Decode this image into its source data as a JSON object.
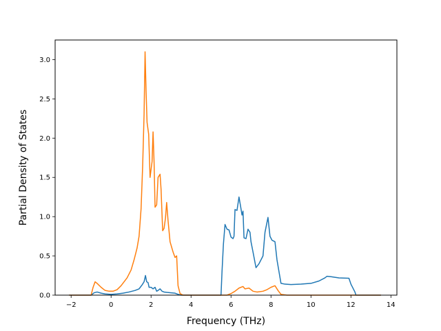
{
  "chart_data": {
    "type": "line",
    "title": "",
    "xlabel": "Frequency (THz)",
    "ylabel": "Partial Density of States",
    "xlim": [
      -2.8,
      14.3
    ],
    "ylim": [
      0.0,
      3.25
    ],
    "xticks": [
      -2,
      0,
      2,
      4,
      6,
      8,
      10,
      12,
      14
    ],
    "yticks": [
      0.0,
      0.5,
      1.0,
      1.5,
      2.0,
      2.5,
      3.0
    ],
    "xtick_labels": [
      "−2",
      "0",
      "2",
      "4",
      "6",
      "8",
      "10",
      "12",
      "14"
    ],
    "ytick_labels": [
      "0.0",
      "0.5",
      "1.0",
      "1.5",
      "2.0",
      "2.5",
      "3.0"
    ],
    "grid": false,
    "legend": "none",
    "series": [
      {
        "color": "#1f77b4",
        "points": [
          [
            -2.1,
            0.0
          ],
          [
            -1.0,
            0.0
          ],
          [
            -0.85,
            0.03
          ],
          [
            -0.7,
            0.04
          ],
          [
            -0.5,
            0.025
          ],
          [
            -0.3,
            0.015
          ],
          [
            0.0,
            0.01
          ],
          [
            0.3,
            0.015
          ],
          [
            0.6,
            0.025
          ],
          [
            0.9,
            0.04
          ],
          [
            1.2,
            0.06
          ],
          [
            1.4,
            0.08
          ],
          [
            1.55,
            0.13
          ],
          [
            1.65,
            0.17
          ],
          [
            1.72,
            0.25
          ],
          [
            1.78,
            0.17
          ],
          [
            1.85,
            0.16
          ],
          [
            1.9,
            0.1
          ],
          [
            2.0,
            0.1
          ],
          [
            2.1,
            0.08
          ],
          [
            2.2,
            0.1
          ],
          [
            2.28,
            0.05
          ],
          [
            2.35,
            0.06
          ],
          [
            2.45,
            0.08
          ],
          [
            2.55,
            0.05
          ],
          [
            2.65,
            0.04
          ],
          [
            2.8,
            0.035
          ],
          [
            3.0,
            0.03
          ],
          [
            3.2,
            0.025
          ],
          [
            3.35,
            0.01
          ],
          [
            3.5,
            0.0
          ],
          [
            5.5,
            0.0
          ],
          [
            5.55,
            0.3
          ],
          [
            5.62,
            0.65
          ],
          [
            5.7,
            0.9
          ],
          [
            5.8,
            0.84
          ],
          [
            5.9,
            0.83
          ],
          [
            6.0,
            0.74
          ],
          [
            6.1,
            0.72
          ],
          [
            6.15,
            0.75
          ],
          [
            6.2,
            1.09
          ],
          [
            6.3,
            1.08
          ],
          [
            6.4,
            1.25
          ],
          [
            6.5,
            1.1
          ],
          [
            6.55,
            1.02
          ],
          [
            6.6,
            1.07
          ],
          [
            6.65,
            0.73
          ],
          [
            6.75,
            0.72
          ],
          [
            6.85,
            0.84
          ],
          [
            6.95,
            0.8
          ],
          [
            7.0,
            0.68
          ],
          [
            7.1,
            0.55
          ],
          [
            7.25,
            0.35
          ],
          [
            7.4,
            0.4
          ],
          [
            7.6,
            0.5
          ],
          [
            7.7,
            0.8
          ],
          [
            7.85,
            0.99
          ],
          [
            7.95,
            0.75
          ],
          [
            8.05,
            0.7
          ],
          [
            8.2,
            0.68
          ],
          [
            8.3,
            0.45
          ],
          [
            8.4,
            0.3
          ],
          [
            8.5,
            0.15
          ],
          [
            8.7,
            0.14
          ],
          [
            9.0,
            0.135
          ],
          [
            9.5,
            0.14
          ],
          [
            10.0,
            0.15
          ],
          [
            10.4,
            0.18
          ],
          [
            10.7,
            0.22
          ],
          [
            10.8,
            0.24
          ],
          [
            11.0,
            0.235
          ],
          [
            11.4,
            0.22
          ],
          [
            11.9,
            0.215
          ],
          [
            12.0,
            0.14
          ],
          [
            12.2,
            0.04
          ],
          [
            12.25,
            0.0
          ],
          [
            13.5,
            0.0
          ]
        ]
      },
      {
        "color": "#ff7f0e",
        "points": [
          [
            -2.1,
            0.0
          ],
          [
            -1.0,
            0.0
          ],
          [
            -0.9,
            0.1
          ],
          [
            -0.8,
            0.17
          ],
          [
            -0.7,
            0.15
          ],
          [
            -0.5,
            0.1
          ],
          [
            -0.3,
            0.06
          ],
          [
            -0.1,
            0.05
          ],
          [
            0.1,
            0.05
          ],
          [
            0.3,
            0.07
          ],
          [
            0.5,
            0.12
          ],
          [
            0.8,
            0.22
          ],
          [
            1.0,
            0.32
          ],
          [
            1.15,
            0.45
          ],
          [
            1.3,
            0.6
          ],
          [
            1.4,
            0.75
          ],
          [
            1.5,
            1.1
          ],
          [
            1.58,
            1.65
          ],
          [
            1.65,
            2.3
          ],
          [
            1.7,
            3.1
          ],
          [
            1.75,
            2.6
          ],
          [
            1.8,
            2.2
          ],
          [
            1.88,
            2.05
          ],
          [
            1.95,
            1.5
          ],
          [
            2.05,
            1.7
          ],
          [
            2.1,
            2.08
          ],
          [
            2.15,
            1.7
          ],
          [
            2.2,
            1.12
          ],
          [
            2.28,
            1.15
          ],
          [
            2.35,
            1.5
          ],
          [
            2.45,
            1.54
          ],
          [
            2.5,
            1.35
          ],
          [
            2.58,
            0.82
          ],
          [
            2.65,
            0.85
          ],
          [
            2.72,
            0.98
          ],
          [
            2.78,
            1.18
          ],
          [
            2.85,
            0.95
          ],
          [
            2.95,
            0.68
          ],
          [
            3.1,
            0.55
          ],
          [
            3.2,
            0.48
          ],
          [
            3.28,
            0.5
          ],
          [
            3.35,
            0.12
          ],
          [
            3.45,
            0.02
          ],
          [
            3.6,
            0.0
          ],
          [
            5.8,
            0.0
          ],
          [
            6.0,
            0.02
          ],
          [
            6.2,
            0.05
          ],
          [
            6.4,
            0.09
          ],
          [
            6.6,
            0.11
          ],
          [
            6.7,
            0.08
          ],
          [
            6.9,
            0.09
          ],
          [
            7.1,
            0.05
          ],
          [
            7.3,
            0.04
          ],
          [
            7.6,
            0.05
          ],
          [
            7.8,
            0.07
          ],
          [
            8.0,
            0.1
          ],
          [
            8.2,
            0.12
          ],
          [
            8.35,
            0.06
          ],
          [
            8.5,
            0.01
          ],
          [
            8.8,
            0.0
          ],
          [
            13.5,
            0.0
          ]
        ]
      }
    ]
  }
}
